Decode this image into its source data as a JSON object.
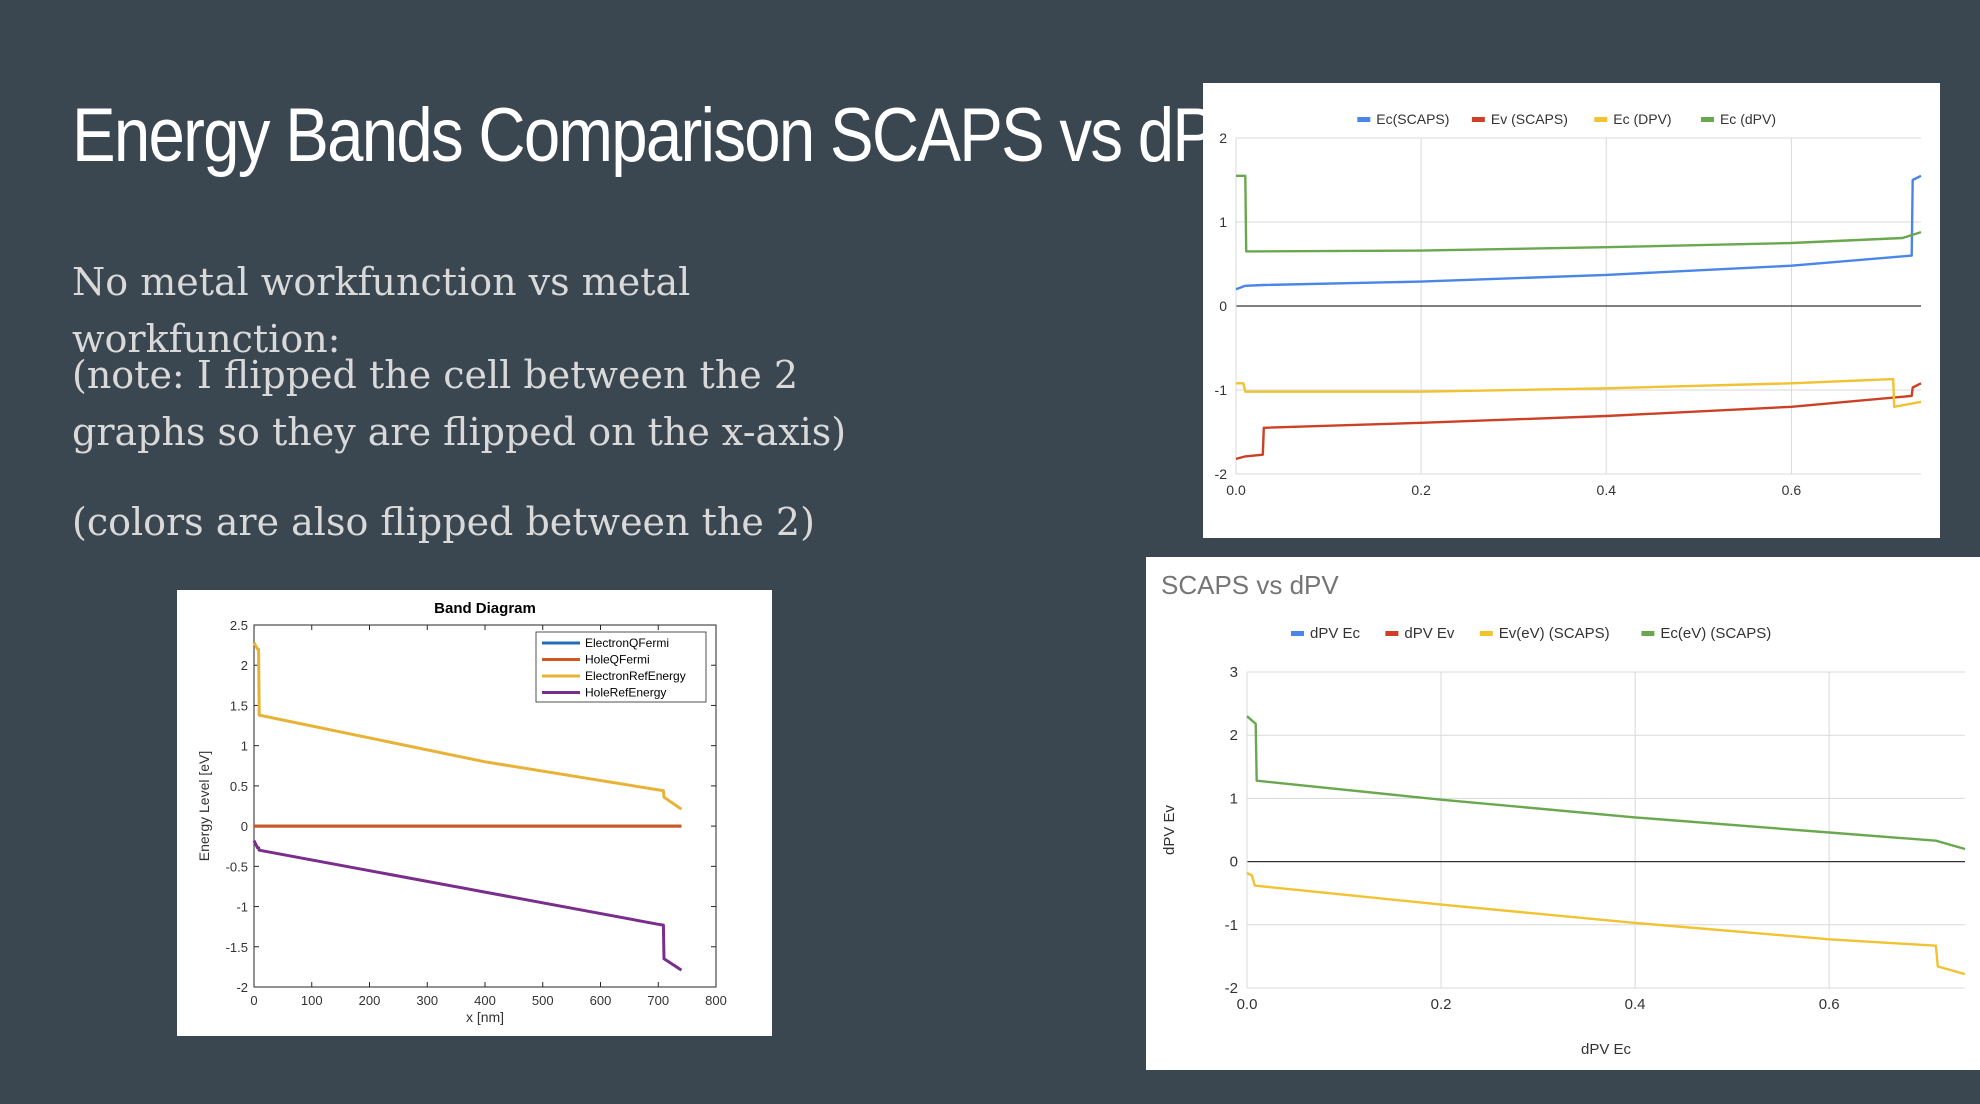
{
  "slide": {
    "title": "Energy Bands Comparison SCAPS vs dPV",
    "paragraphs": [
      "No metal workfunction vs metal workfunction:",
      "(note: I flipped the cell between the 2 graphs so they are flipped on the x-axis)",
      "(colors are also flipped between the 2)"
    ]
  },
  "chart_data": [
    {
      "type": "line",
      "title": "",
      "xlabel": "",
      "ylabel": "",
      "xlim": [
        0,
        0.74
      ],
      "ylim": [
        -2,
        2
      ],
      "x_ticks": [
        "0.0",
        "0.2",
        "0.4",
        "0.6"
      ],
      "x_tick_values": [
        0,
        0.2,
        0.4,
        0.6
      ],
      "y_ticks": [
        "2",
        "1",
        "0",
        "-1",
        "-2"
      ],
      "y_tick_values": [
        2,
        1,
        0,
        -1,
        -2
      ],
      "grid": true,
      "legend_position": "top",
      "series": [
        {
          "name": "Ec(SCAPS)",
          "color": "#4a86e8",
          "x": [
            0,
            0.005,
            0.01,
            0.03,
            0.2,
            0.4,
            0.6,
            0.73,
            0.731,
            0.74
          ],
          "y": [
            0.2,
            0.22,
            0.24,
            0.25,
            0.29,
            0.37,
            0.48,
            0.6,
            1.5,
            1.55
          ]
        },
        {
          "name": "Ev (SCAPS)",
          "color": "#cc4125",
          "x": [
            0,
            0.01,
            0.029,
            0.03,
            0.2,
            0.4,
            0.6,
            0.73,
            0.731,
            0.74
          ],
          "y": [
            -1.82,
            -1.79,
            -1.77,
            -1.45,
            -1.39,
            -1.31,
            -1.2,
            -1.07,
            -0.97,
            -0.92
          ]
        },
        {
          "name": "Ec (DPV)",
          "color": "#f1c232",
          "x": [
            0,
            0.008,
            0.01,
            0.2,
            0.4,
            0.6,
            0.71,
            0.711,
            0.74
          ],
          "y": [
            -0.92,
            -0.92,
            -1.02,
            -1.02,
            -0.98,
            -0.92,
            -0.87,
            -1.2,
            -1.14
          ]
        },
        {
          "name": "Ec (dPV)",
          "color": "#6aa84f",
          "x": [
            0,
            0.01,
            0.011,
            0.2,
            0.4,
            0.6,
            0.72,
            0.74
          ],
          "y": [
            1.55,
            1.55,
            0.65,
            0.66,
            0.7,
            0.75,
            0.81,
            0.88
          ]
        }
      ]
    },
    {
      "type": "line",
      "title": "SCAPS vs dPV",
      "xlabel": "dPV Ec",
      "ylabel": "dPV Ev",
      "xlim": [
        0,
        0.74
      ],
      "ylim": [
        -2,
        3
      ],
      "x_ticks": [
        "0.0",
        "0.2",
        "0.4",
        "0.6"
      ],
      "x_tick_values": [
        0,
        0.2,
        0.4,
        0.6
      ],
      "y_ticks": [
        "3",
        "2",
        "1",
        "0",
        "-1",
        "-2"
      ],
      "y_tick_values": [
        3,
        2,
        1,
        0,
        -1,
        -2
      ],
      "grid": true,
      "legend_position": "top",
      "series": [
        {
          "name": "dPV Ec",
          "color": "#4a86e8",
          "x": [],
          "y": []
        },
        {
          "name": "dPV Ev",
          "color": "#cc4125",
          "x": [],
          "y": []
        },
        {
          "name": "Ev(eV) (SCAPS)",
          "color": "#f1c232",
          "x": [
            0,
            0.005,
            0.008,
            0.2,
            0.4,
            0.6,
            0.71,
            0.712,
            0.74
          ],
          "y": [
            -0.18,
            -0.22,
            -0.38,
            -0.68,
            -0.97,
            -1.23,
            -1.33,
            -1.66,
            -1.78
          ]
        },
        {
          "name": "Ec(eV) (SCAPS)",
          "color": "#6aa84f",
          "x": [
            0,
            0.009,
            0.01,
            0.2,
            0.4,
            0.6,
            0.71,
            0.74
          ],
          "y": [
            2.3,
            2.18,
            1.28,
            0.98,
            0.7,
            0.46,
            0.33,
            0.2
          ]
        }
      ]
    },
    {
      "type": "line",
      "title": "Band Diagram",
      "xlabel": "x [nm]",
      "ylabel": "Energy Level [eV]",
      "xlim": [
        0,
        800
      ],
      "ylim": [
        -2,
        2.5
      ],
      "x_ticks": [
        "0",
        "100",
        "200",
        "300",
        "400",
        "500",
        "600",
        "700",
        "800"
      ],
      "x_tick_values": [
        0,
        100,
        200,
        300,
        400,
        500,
        600,
        700,
        800
      ],
      "y_ticks": [
        "2.5",
        "2",
        "1.5",
        "1",
        "0.5",
        "0",
        "-0.5",
        "-1",
        "-1.5",
        "-2"
      ],
      "y_tick_values": [
        2.5,
        2,
        1.5,
        1,
        0.5,
        0,
        -0.5,
        -1,
        -1.5,
        -2
      ],
      "grid": false,
      "legend_position": "top-right",
      "series": [
        {
          "name": "ElectronQFermi",
          "color": "#1f6fb8",
          "x": [
            0,
            740
          ],
          "y": [
            0,
            0
          ]
        },
        {
          "name": "HoleQFermi",
          "color": "#d2561e",
          "x": [
            0,
            740
          ],
          "y": [
            0,
            0
          ]
        },
        {
          "name": "ElectronRefEnergy",
          "color": "#e8b236",
          "x": [
            0,
            6,
            8,
            9,
            400,
            700,
            709,
            710,
            740
          ],
          "y": [
            2.28,
            2.2,
            2.2,
            1.38,
            0.8,
            0.45,
            0.44,
            0.36,
            0.21
          ]
        },
        {
          "name": "HoleRefEnergy",
          "color": "#7a2d8c",
          "x": [
            0,
            6,
            8,
            9,
            400,
            700,
            709,
            710,
            740
          ],
          "y": [
            -0.18,
            -0.27,
            -0.27,
            -0.3,
            -0.82,
            -1.22,
            -1.23,
            -1.65,
            -1.79
          ]
        }
      ]
    }
  ]
}
